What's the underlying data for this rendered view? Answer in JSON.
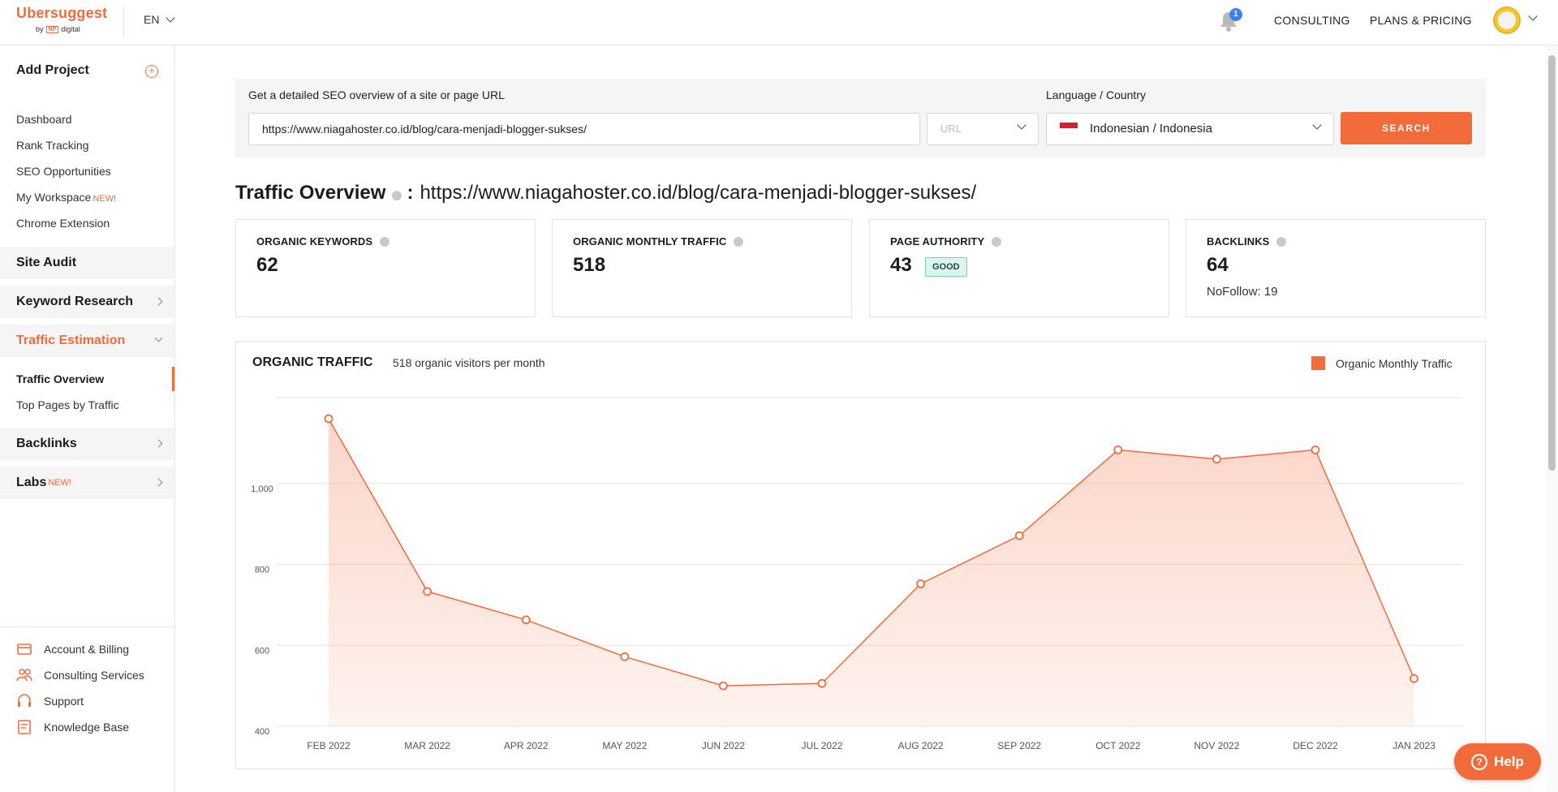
{
  "header": {
    "logo": "Ubersuggest",
    "logo_by": "by",
    "logo_np": "NP",
    "logo_digital": "digital",
    "language": "EN",
    "notification_count": "1",
    "nav": [
      "CONSULTING",
      "PLANS & PRICING"
    ]
  },
  "sidebar": {
    "add_project": "Add Project",
    "links": [
      {
        "label": "Dashboard"
      },
      {
        "label": "Rank Tracking"
      },
      {
        "label": "SEO Opportunities"
      },
      {
        "label": "My Workspace",
        "badge": "NEW!"
      },
      {
        "label": "Chrome Extension"
      }
    ],
    "sections": [
      {
        "label": "Site Audit"
      },
      {
        "label": "Keyword Research"
      },
      {
        "label": "Traffic Estimation"
      },
      {
        "label": "Backlinks"
      },
      {
        "label": "Labs",
        "badge": "NEW!"
      }
    ],
    "traffic_sub": [
      "Traffic Overview",
      "Top Pages by Traffic"
    ],
    "bottom": [
      {
        "label": "Account & Billing",
        "icon": "credit-card-icon"
      },
      {
        "label": "Consulting Services",
        "icon": "people-icon"
      },
      {
        "label": "Support",
        "icon": "headset-icon"
      },
      {
        "label": "Knowledge Base",
        "icon": "book-icon"
      }
    ]
  },
  "search": {
    "label": "Get a detailed SEO overview of a site or page URL",
    "url_value": "https://www.niagahoster.co.id/blog/cara-menjadi-blogger-sukses/",
    "type_value": "URL",
    "lang_label": "Language / Country",
    "lang_value": "Indonesian / Indonesia",
    "button": "SEARCH"
  },
  "overview": {
    "title": "Traffic Overview",
    "colon": ":",
    "url": "https://www.niagahoster.co.id/blog/cara-menjadi-blogger-sukses/"
  },
  "cards": [
    {
      "label": "ORGANIC KEYWORDS",
      "value": "62"
    },
    {
      "label": "ORGANIC MONTHLY TRAFFIC",
      "value": "518"
    },
    {
      "label": "PAGE AUTHORITY",
      "value": "43",
      "badge": "GOOD"
    },
    {
      "label": "BACKLINKS",
      "value": "64",
      "sub": "NoFollow: 19"
    }
  ],
  "chart_header": {
    "title": "ORGANIC TRAFFIC",
    "subtitle": "518 organic visitors per month",
    "legend": "Organic Monthly Traffic"
  },
  "help_button": "Help",
  "colors": {
    "accent": "#f26b3a",
    "good_bg": "#d9f5ee"
  },
  "chart_data": {
    "type": "area",
    "title": "ORGANIC TRAFFIC",
    "subtitle": "518 organic visitors per month",
    "categories": [
      "FEB 2022",
      "MAR 2022",
      "APR 2022",
      "MAY 2022",
      "JUN 2022",
      "JUL 2022",
      "AUG 2022",
      "SEP 2022",
      "OCT 2022",
      "NOV 2022",
      "DEC 2022",
      "JAN 2023"
    ],
    "series": [
      {
        "name": "Organic Monthly Traffic",
        "values": [
          1160,
          733,
          663,
          572,
          500,
          506,
          752,
          871,
          1083,
          1060,
          1083,
          518
        ]
      }
    ],
    "yticks": [
      400,
      600,
      800,
      1000
    ],
    "ytick_labels": [
      "400",
      "600",
      "800",
      "1,000"
    ],
    "ylim": [
      400,
      1200
    ],
    "grid": true,
    "legend": "top-right",
    "color": "#f26b3a"
  }
}
